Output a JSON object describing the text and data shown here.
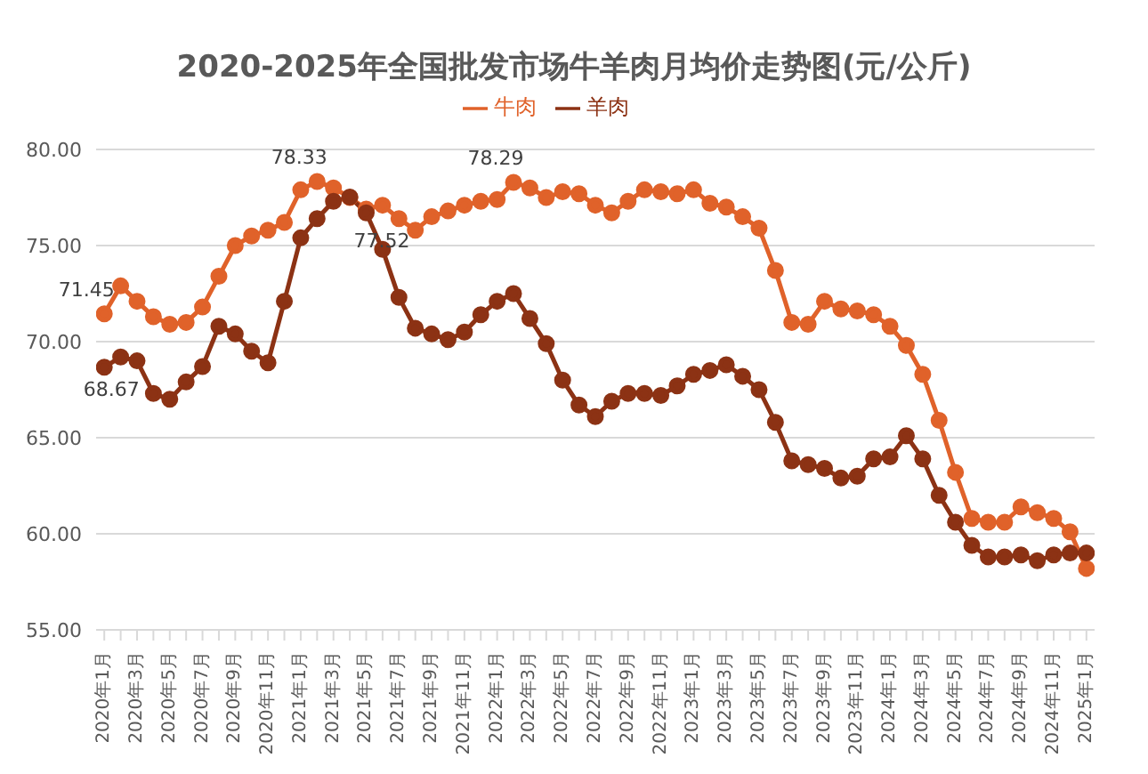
{
  "chart_data": {
    "type": "line",
    "title": "2020-2025年全国批发市场牛羊肉月均价走势图(元/公斤)",
    "categories": [
      "2020年1月",
      null,
      "2020年3月",
      null,
      "2020年5月",
      null,
      "2020年7月",
      null,
      "2020年9月",
      null,
      "2020年11月",
      null,
      "2021年1月",
      null,
      "2021年3月",
      null,
      "2021年5月",
      null,
      "2021年7月",
      null,
      "2021年9月",
      null,
      "2021年11月",
      null,
      "2022年1月",
      null,
      "2022年3月",
      null,
      "2022年5月",
      null,
      "2022年7月",
      null,
      "2022年9月",
      null,
      "2022年11月",
      null,
      "2023年1月",
      null,
      "2023年3月",
      null,
      "2023年5月",
      null,
      "2023年7月",
      null,
      "2023年9月",
      null,
      "2023年11月",
      null,
      "2024年1月",
      null,
      "2024年3月",
      null,
      "2024年5月",
      null,
      "2024年7月",
      null,
      "2024年9月",
      null,
      "2024年11月",
      null,
      "2025年1月"
    ],
    "series": [
      {
        "name": "牛肉",
        "color": "#e0622a",
        "values": [
          71.45,
          72.9,
          72.1,
          71.3,
          70.9,
          71.0,
          71.8,
          73.4,
          75.0,
          75.5,
          75.8,
          76.2,
          77.9,
          78.33,
          78.0,
          77.5,
          76.9,
          77.1,
          76.4,
          75.8,
          76.5,
          76.8,
          77.1,
          77.3,
          77.4,
          78.29,
          78.0,
          77.5,
          77.8,
          77.7,
          77.1,
          76.7,
          77.3,
          77.9,
          77.8,
          77.7,
          77.9,
          77.2,
          77.0,
          76.5,
          75.9,
          73.7,
          71.0,
          70.9,
          72.1,
          71.7,
          71.6,
          71.4,
          70.8,
          69.8,
          68.3,
          65.9,
          63.2,
          60.8,
          60.6,
          60.6,
          61.4,
          61.1,
          60.8,
          60.1,
          58.2
        ],
        "value_labels": [
          "71.45",
          null,
          null,
          null,
          null,
          null,
          null,
          null,
          null,
          null,
          null,
          null,
          null,
          "78.33",
          null,
          null,
          null,
          null,
          null,
          null,
          null,
          null,
          null,
          null,
          null,
          "78.29",
          null,
          null,
          null,
          null,
          null,
          null,
          null,
          null,
          null,
          null,
          null,
          null,
          null,
          null,
          null,
          null,
          null,
          null,
          null,
          null,
          null,
          null,
          null,
          null,
          null,
          null,
          null,
          null,
          null,
          null,
          null,
          null,
          null,
          null,
          null
        ]
      },
      {
        "name": "羊肉",
        "color": "#8c3214",
        "values": [
          68.67,
          69.2,
          69.0,
          67.3,
          67.0,
          67.9,
          68.7,
          70.8,
          70.4,
          69.5,
          68.9,
          72.1,
          75.4,
          76.4,
          77.3,
          77.52,
          76.7,
          74.8,
          72.3,
          70.7,
          70.4,
          70.1,
          70.5,
          71.4,
          72.1,
          72.5,
          71.2,
          69.9,
          68.0,
          66.7,
          66.1,
          66.9,
          67.3,
          67.3,
          67.2,
          67.7,
          68.3,
          68.5,
          68.8,
          68.2,
          67.5,
          65.8,
          63.8,
          63.6,
          63.4,
          62.9,
          63.0,
          63.9,
          64.0,
          65.1,
          63.9,
          62.0,
          60.6,
          59.4,
          58.8,
          58.8,
          58.9,
          58.6,
          58.9,
          59.0,
          59.0
        ],
        "value_labels": [
          "68.67",
          null,
          null,
          null,
          null,
          null,
          null,
          null,
          null,
          null,
          null,
          null,
          null,
          null,
          null,
          "77.52",
          null,
          null,
          null,
          null,
          null,
          null,
          null,
          null,
          null,
          null,
          null,
          null,
          null,
          null,
          null,
          null,
          null,
          null,
          null,
          null,
          null,
          null,
          null,
          null,
          null,
          null,
          null,
          null,
          null,
          null,
          null,
          null,
          null,
          null,
          null,
          null,
          null,
          null,
          null,
          null,
          null,
          null,
          null,
          null,
          null
        ]
      }
    ],
    "ylim": [
      55,
      80
    ],
    "yticks": [
      {
        "value": 55,
        "label": "55.00"
      },
      {
        "value": 60,
        "label": "60.00"
      },
      {
        "value": 65,
        "label": "65.00"
      },
      {
        "value": 70,
        "label": "70.00"
      },
      {
        "value": 75,
        "label": "75.00"
      },
      {
        "value": 80,
        "label": "80.00"
      }
    ],
    "grid": "y",
    "legend": "top",
    "marker": "circle",
    "line_style": "solid"
  }
}
